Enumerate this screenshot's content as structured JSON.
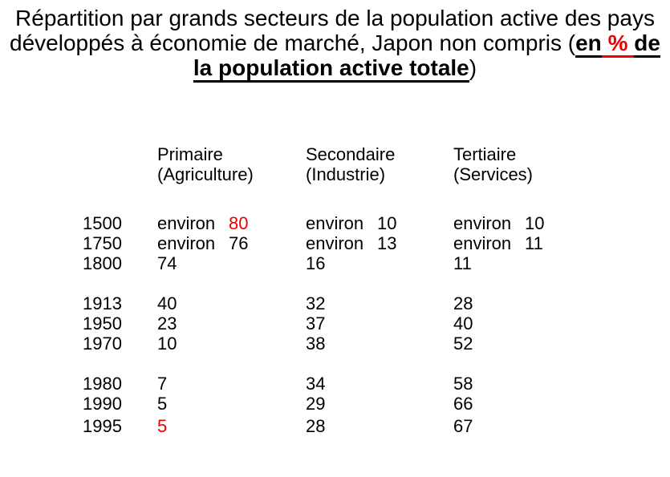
{
  "title": {
    "line1": "Répartition par grands secteurs de la population active des pays",
    "line2": {
      "prefix": "développés à économie de marché, Japon non compris (",
      "bold_black_1": "en",
      "bold_red": " % ",
      "bold_black_2": "de"
    },
    "line3": {
      "bold_underlined": "la population active totale",
      "suffix": ")"
    }
  },
  "table": {
    "headers": [
      {
        "title": "Primaire",
        "subtitle": "(Agriculture)"
      },
      {
        "title": "Secondaire",
        "subtitle": "(Industrie)"
      },
      {
        "title": "Tertiaire",
        "subtitle": "(Services)"
      }
    ],
    "rows": [
      {
        "year": "1500",
        "gap_before": false,
        "cells": [
          {
            "prefix": "environ",
            "value": "80",
            "red": true
          },
          {
            "prefix": "environ",
            "value": "10",
            "red": false
          },
          {
            "prefix": "environ",
            "value": "10",
            "red": false
          }
        ]
      },
      {
        "year": "1750",
        "gap_before": false,
        "cells": [
          {
            "prefix": "environ",
            "value": "76",
            "red": false
          },
          {
            "prefix": "environ",
            "value": "13",
            "red": false
          },
          {
            "prefix": "environ",
            "value": "11",
            "red": false
          }
        ]
      },
      {
        "year": "1800",
        "gap_before": false,
        "cells": [
          {
            "prefix": "",
            "value": "74",
            "red": false
          },
          {
            "prefix": "",
            "value": "16",
            "red": false
          },
          {
            "prefix": "",
            "value": "11",
            "red": false
          }
        ]
      },
      {
        "year": "1913",
        "gap_before": true,
        "cells": [
          {
            "prefix": "",
            "value": "40",
            "red": false
          },
          {
            "prefix": "",
            "value": "32",
            "red": false
          },
          {
            "prefix": "",
            "value": "28",
            "red": false
          }
        ]
      },
      {
        "year": "1950",
        "gap_before": false,
        "cells": [
          {
            "prefix": "",
            "value": "23",
            "red": false
          },
          {
            "prefix": "",
            "value": "37",
            "red": false
          },
          {
            "prefix": "",
            "value": "40",
            "red": false
          }
        ]
      },
      {
        "year": "1970",
        "gap_before": false,
        "cells": [
          {
            "prefix": "",
            "value": "10",
            "red": false
          },
          {
            "prefix": "",
            "value": "38",
            "red": false
          },
          {
            "prefix": "",
            "value": "52",
            "red": false
          }
        ]
      },
      {
        "year": "1980",
        "gap_before": true,
        "cells": [
          {
            "prefix": "",
            "value": "7",
            "red": false
          },
          {
            "prefix": "",
            "value": "34",
            "red": false
          },
          {
            "prefix": "",
            "value": "58",
            "red": false
          }
        ]
      },
      {
        "year": "1990",
        "gap_before": false,
        "cells": [
          {
            "prefix": "",
            "value": "5",
            "red": false
          },
          {
            "prefix": "",
            "value": "29",
            "red": false
          },
          {
            "prefix": "",
            "value": "66",
            "red": false
          }
        ]
      },
      {
        "year": "1995",
        "gap_before": "small",
        "cells": [
          {
            "prefix": "",
            "value": "5",
            "red": true
          },
          {
            "prefix": "",
            "value": "28",
            "red": false
          },
          {
            "prefix": "",
            "value": "67",
            "red": false
          }
        ]
      }
    ]
  },
  "colors": {
    "accent_red": "#ee0000",
    "text": "#000000",
    "background": "#ffffff"
  },
  "chart_data": {
    "type": "table",
    "title": "Répartition par grands secteurs de la population active des pays développés à économie de marché, Japon non compris (en % de la population active totale)",
    "unit": "% de la population active totale",
    "columns": [
      "",
      "Primaire (Agriculture)",
      "Secondaire (Industrie)",
      "Tertiaire (Services)"
    ],
    "rows": [
      {
        "year": 1500,
        "primaire": 80,
        "secondaire": 10,
        "tertiaire": 10,
        "approximate": true
      },
      {
        "year": 1750,
        "primaire": 76,
        "secondaire": 13,
        "tertiaire": 11,
        "approximate": true
      },
      {
        "year": 1800,
        "primaire": 74,
        "secondaire": 16,
        "tertiaire": 11,
        "approximate": false
      },
      {
        "year": 1913,
        "primaire": 40,
        "secondaire": 32,
        "tertiaire": 28,
        "approximate": false
      },
      {
        "year": 1950,
        "primaire": 23,
        "secondaire": 37,
        "tertiaire": 40,
        "approximate": false
      },
      {
        "year": 1970,
        "primaire": 10,
        "secondaire": 38,
        "tertiaire": 52,
        "approximate": false
      },
      {
        "year": 1980,
        "primaire": 7,
        "secondaire": 34,
        "tertiaire": 58,
        "approximate": false
      },
      {
        "year": 1990,
        "primaire": 5,
        "secondaire": 29,
        "tertiaire": 66,
        "approximate": false
      },
      {
        "year": 1995,
        "primaire": 5,
        "secondaire": 28,
        "tertiaire": 67,
        "approximate": false
      }
    ],
    "highlighted_red_values": [
      {
        "year": 1500,
        "column": "primaire",
        "value": 80
      },
      {
        "year": 1995,
        "column": "primaire",
        "value": 5
      }
    ],
    "layout": {
      "groups": [
        [
          "1500",
          "1750",
          "1800"
        ],
        [
          "1913",
          "1950",
          "1970"
        ],
        [
          "1980",
          "1990",
          "1995"
        ]
      ],
      "grid": false,
      "legend": false
    }
  }
}
